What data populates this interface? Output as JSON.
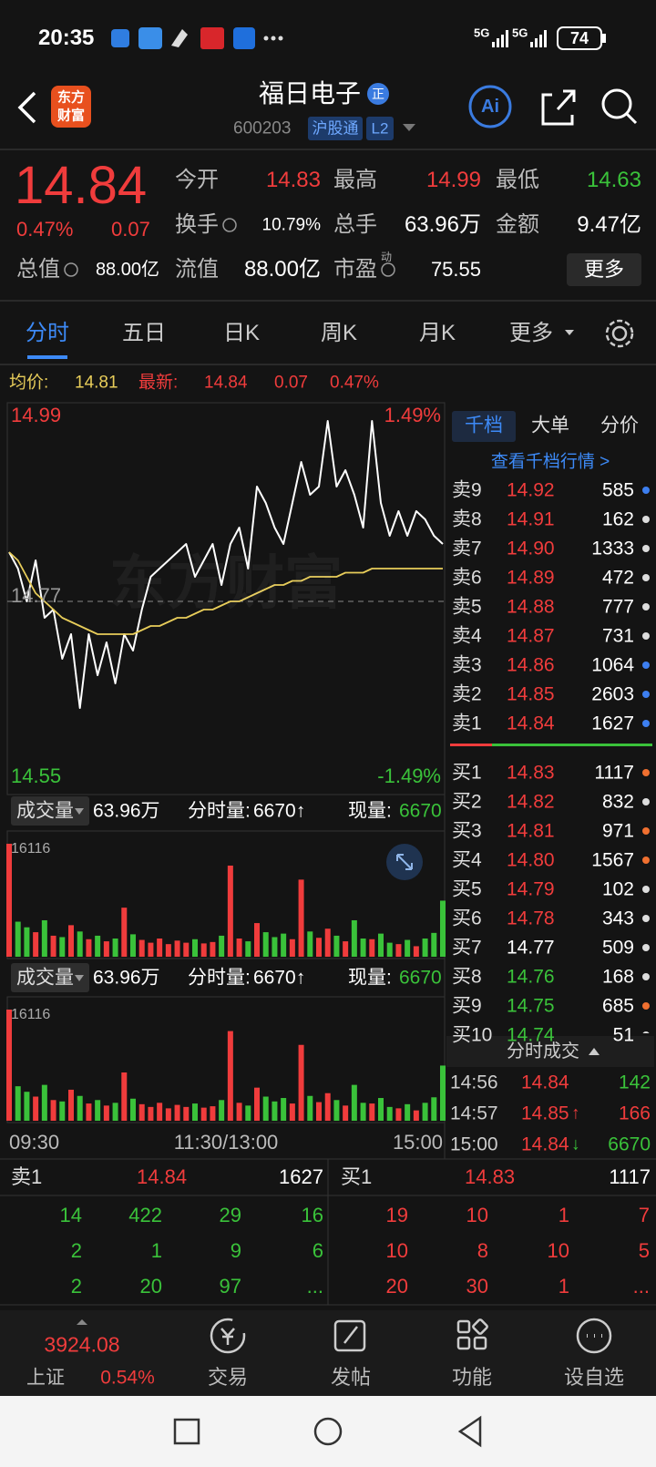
{
  "status_bar": {
    "time": "20:35",
    "network": [
      "5G",
      "5G"
    ],
    "battery": "74"
  },
  "header": {
    "logo": [
      "东方",
      "财富"
    ],
    "name": "福日电子",
    "badge": "正",
    "code": "600203",
    "tags": [
      "沪股通",
      "L2"
    ],
    "ai": "Ai"
  },
  "quote": {
    "price": "14.84",
    "change_pct": "0.47%",
    "change": "0.07",
    "fields": [
      {
        "label": "今开",
        "value": "14.83",
        "color": "#f03c3c"
      },
      {
        "label": "最高",
        "value": "14.99",
        "color": "#f03c3c"
      },
      {
        "label": "最低",
        "value": "14.63",
        "color": "#3ac23a"
      },
      {
        "label": "换手",
        "value": "10.79%"
      },
      {
        "label": "总手",
        "value": "63.96万"
      },
      {
        "label": "金额",
        "value": "9.47亿"
      },
      {
        "label": "总值",
        "value": "88.00亿"
      },
      {
        "label": "流值",
        "value": "88.00亿"
      },
      {
        "label": "市盈",
        "sup": "动",
        "value": "75.55"
      }
    ],
    "more": "更多"
  },
  "tabs": [
    "分时",
    "五日",
    "日K",
    "周K",
    "月K",
    "更多"
  ],
  "summary": {
    "avg_label": "均价:",
    "avg": "14.81",
    "last_label": "最新:",
    "last": "14.84",
    "change": "0.07",
    "change_pct": "0.47%"
  },
  "chart_data": [
    {
      "type": "line",
      "watermark": "东方财富",
      "series": [
        {
          "color": "#ffffff",
          "values": [
            14.83,
            14.81,
            14.77,
            14.82,
            14.75,
            14.76,
            14.7,
            14.73,
            14.64,
            14.73,
            14.68,
            14.72,
            14.67,
            14.73,
            14.71,
            14.76,
            14.8,
            14.81,
            14.82,
            14.83,
            14.84,
            14.8,
            14.82,
            14.84,
            14.79,
            14.84,
            14.86,
            14.81,
            14.91,
            14.89,
            14.86,
            14.84,
            14.89,
            14.94,
            14.9,
            14.91,
            14.99,
            14.91,
            14.93,
            14.9,
            14.86,
            14.99,
            14.89,
            14.85,
            14.88,
            14.85,
            14.88,
            14.87,
            14.85,
            14.84
          ]
        },
        {
          "color": "#e8cd5a",
          "values": [
            14.83,
            14.82,
            14.8,
            14.78,
            14.77,
            14.76,
            14.75,
            14.745,
            14.74,
            14.735,
            14.73,
            14.73,
            14.73,
            14.73,
            14.73,
            14.735,
            14.74,
            14.74,
            14.745,
            14.75,
            14.75,
            14.755,
            14.76,
            14.76,
            14.765,
            14.77,
            14.77,
            14.775,
            14.78,
            14.785,
            14.79,
            14.79,
            14.795,
            14.795,
            14.8,
            14.8,
            14.8,
            14.8,
            14.805,
            14.805,
            14.805,
            14.81,
            14.81,
            14.81,
            14.81,
            14.81,
            14.81,
            14.81,
            14.81,
            14.81
          ]
        }
      ],
      "ylim": [
        14.55,
        14.99
      ],
      "yticks": [
        14.99,
        14.77,
        14.55
      ],
      "y2lim": [
        -1.49,
        1.49
      ],
      "y2ticks": [
        {
          "value": 1.49,
          "label": "1.49%"
        },
        {
          "value": -1.49,
          "label": "-1.49%"
        }
      ]
    },
    {
      "type": "bar",
      "title": "成交量",
      "total": "63.96万",
      "fields": [
        {
          "label": "分时量:",
          "value": "6670↑"
        },
        {
          "label": "现量:",
          "value": "6670",
          "color": "#3ac23a"
        }
      ],
      "values": [
        16116,
        5000,
        4200,
        3500,
        5200,
        3000,
        2800,
        4500,
        3600,
        2500,
        3000,
        2200,
        2600,
        7000,
        3200,
        2400,
        2000,
        2600,
        1800,
        2300,
        2000,
        2500,
        1900,
        2100,
        3000,
        13000,
        2600,
        2200,
        4800,
        3500,
        2800,
        3300,
        2500,
        11000,
        3600,
        2700,
        4000,
        3000,
        2200,
        5200,
        2600,
        2500,
        3300,
        2000,
        1800,
        2400,
        1500,
        2600,
        3400,
        8000
      ],
      "ylim": [
        0,
        16116
      ],
      "yticks": [
        16116
      ]
    },
    {
      "type": "bar",
      "title": "成交量",
      "total": "63.96万",
      "fields": [
        {
          "label": "分时量:",
          "value": "6670↑"
        },
        {
          "label": "现量:",
          "value": "6670",
          "color": "#3ac23a"
        }
      ],
      "values": [
        16116,
        5000,
        4200,
        3500,
        5200,
        3000,
        2800,
        4500,
        3600,
        2500,
        3000,
        2200,
        2600,
        7000,
        3200,
        2400,
        2000,
        2600,
        1800,
        2300,
        2000,
        2500,
        1900,
        2100,
        3000,
        13000,
        2600,
        2200,
        4800,
        3500,
        2800,
        3300,
        2500,
        11000,
        3600,
        2700,
        4000,
        3000,
        2200,
        5200,
        2600,
        2500,
        3300,
        2000,
        1800,
        2400,
        1500,
        2600,
        3400,
        8000
      ],
      "ylim": [
        0,
        16116
      ],
      "yticks": [
        16116
      ],
      "x_axis_labels": [
        "09:30",
        "11:30/13:00",
        "15:00"
      ]
    }
  ],
  "order_book": {
    "tabs": [
      "千档",
      "大单",
      "分价"
    ],
    "link": "查看千档行情 >",
    "asks": [
      {
        "label": "卖9",
        "price": "14.92",
        "volume": "585",
        "dot": "#3d7ff0"
      },
      {
        "label": "卖8",
        "price": "14.91",
        "volume": "162",
        "dot": "#dddddd"
      },
      {
        "label": "卖7",
        "price": "14.90",
        "volume": "1333",
        "dot": "#dddddd"
      },
      {
        "label": "卖6",
        "price": "14.89",
        "volume": "472",
        "dot": "#dddddd"
      },
      {
        "label": "卖5",
        "price": "14.88",
        "volume": "777",
        "dot": "#dddddd"
      },
      {
        "label": "卖4",
        "price": "14.87",
        "volume": "731",
        "dot": "#dddddd"
      },
      {
        "label": "卖3",
        "price": "14.86",
        "volume": "1064",
        "dot": "#3d7ff0"
      },
      {
        "label": "卖2",
        "price": "14.85",
        "volume": "2603",
        "dot": "#3d7ff0"
      },
      {
        "label": "卖1",
        "price": "14.84",
        "volume": "1627",
        "dot": "#3d7ff0"
      }
    ],
    "bids": [
      {
        "label": "买1",
        "price": "14.83",
        "volume": "1117",
        "dot": "#f07030"
      },
      {
        "label": "买2",
        "price": "14.82",
        "volume": "832",
        "dot": "#dddddd"
      },
      {
        "label": "买3",
        "price": "14.81",
        "volume": "971",
        "dot": "#f07030"
      },
      {
        "label": "买4",
        "price": "14.80",
        "volume": "1567",
        "dot": "#f07030"
      },
      {
        "label": "买5",
        "price": "14.79",
        "volume": "102",
        "dot": "#dddddd"
      },
      {
        "label": "买6",
        "price": "14.78",
        "volume": "343",
        "dot": "#dddddd"
      },
      {
        "label": "买7",
        "price": "14.77",
        "volume": "509",
        "dot": "#dddddd"
      },
      {
        "label": "买8",
        "price": "14.76",
        "volume": "168",
        "dot": "#dddddd"
      },
      {
        "label": "买9",
        "price": "14.75",
        "volume": "685",
        "dot": "#f07030"
      },
      {
        "label": "买10",
        "price": "14.74",
        "volume": "51",
        "dot": "#dddddd"
      }
    ],
    "trades_title": "分时成交",
    "trades": [
      {
        "time": "14:56",
        "price": "14.84",
        "volume": "142",
        "color": "#3ac23a"
      },
      {
        "time": "14:57",
        "price": "14.85",
        "arrow": "↑",
        "volume": "166",
        "color": "#f03c3c"
      },
      {
        "time": "15:00",
        "price": "14.84",
        "arrow": "↓",
        "volume": "6670",
        "color": "#3ac23a"
      }
    ]
  },
  "level1": {
    "sell": {
      "label": "卖1",
      "price": "14.84",
      "volume": "1627",
      "rows": [
        [
          "14",
          "422",
          "29",
          "16"
        ],
        [
          "2",
          "1",
          "9",
          "6"
        ],
        [
          "2",
          "20",
          "97",
          "..."
        ]
      ]
    },
    "buy": {
      "label": "买1",
      "price": "14.83",
      "volume": "1117",
      "rows": [
        [
          "19",
          "10",
          "1",
          "7"
        ],
        [
          "10",
          "8",
          "10",
          "5"
        ],
        [
          "20",
          "30",
          "1",
          "..."
        ]
      ]
    }
  },
  "index": {
    "value": "3924.08",
    "name": "上证",
    "change_pct": "0.54%"
  },
  "nav": [
    "交易",
    "发帖",
    "功能",
    "设自选"
  ]
}
